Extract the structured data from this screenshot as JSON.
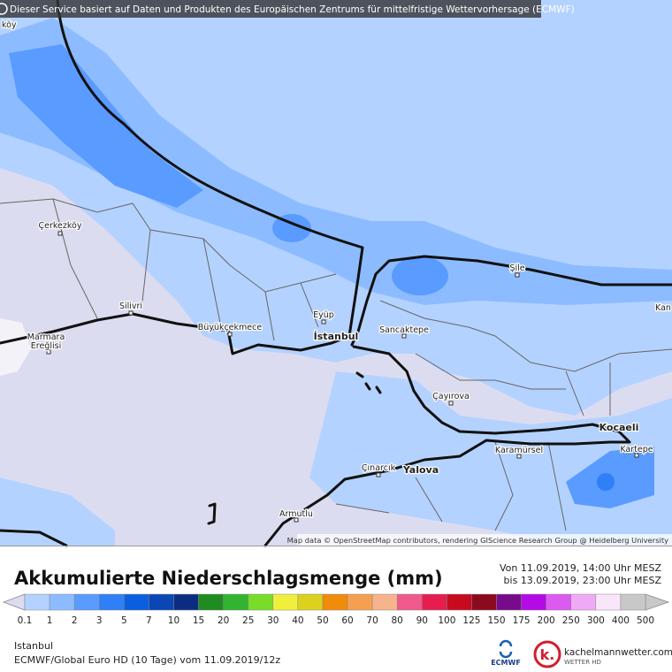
{
  "banner": "Dieser Service basiert auf Daten und Produkten des Europäischen Zentrums für mittelfristige Wettervorhersage (ECMWF)",
  "map": {
    "places": [
      "köy",
      "Çerkezköy",
      "Silivri",
      "Marmara",
      "Ereğlisi",
      "Büyükçekmece",
      "Eyüp",
      "İstanbul",
      "Sancaktepe",
      "Şile",
      "Kan",
      "Çayırova",
      "Kocaeli",
      "Kartepe",
      "Karamürsel",
      "Çınarcık",
      "Yalova",
      "Armutlu"
    ],
    "attribution": "Map data © OpenStreetMap contributors, rendering GIScience Research Group @ Heidelberg University"
  },
  "footer": {
    "title": "Akkumulierte Niederschlagsmenge (mm)",
    "period": [
      "Von 11.09.2019, 14:00 Uhr MESZ",
      "bis 13.09.2019, 23:00 Uhr MESZ"
    ],
    "legend": [
      {
        "label": "0.1",
        "color": "#dcdcf0"
      },
      {
        "label": "1",
        "color": "#b4d2ff"
      },
      {
        "label": "2",
        "color": "#8cbcff"
      },
      {
        "label": "3",
        "color": "#5a9bff"
      },
      {
        "label": "5",
        "color": "#2f7ff6"
      },
      {
        "label": "7",
        "color": "#0a5fe0"
      },
      {
        "label": "10",
        "color": "#0a46b4"
      },
      {
        "label": "15",
        "color": "#0a2d82"
      },
      {
        "label": "20",
        "color": "#1e8c1e"
      },
      {
        "label": "25",
        "color": "#32b432"
      },
      {
        "label": "30",
        "color": "#78dc28"
      },
      {
        "label": "40",
        "color": "#f0f03c"
      },
      {
        "label": "50",
        "color": "#dcd21e"
      },
      {
        "label": "60",
        "color": "#f08c0a"
      },
      {
        "label": "70",
        "color": "#f5a050"
      },
      {
        "label": "80",
        "color": "#f5b48c"
      },
      {
        "label": "90",
        "color": "#f05a8c"
      },
      {
        "label": "100",
        "color": "#e61e50"
      },
      {
        "label": "125",
        "color": "#c80a1e"
      },
      {
        "label": "150",
        "color": "#8c0a1e"
      },
      {
        "label": "175",
        "color": "#780a8c"
      },
      {
        "label": "200",
        "color": "#b40ae6"
      },
      {
        "label": "250",
        "color": "#dc5af0"
      },
      {
        "label": "300",
        "color": "#f0aaf5"
      },
      {
        "label": "400",
        "color": "#fae6fa"
      },
      {
        "label": "500",
        "color": "#c8c8c8"
      }
    ],
    "location": "Istanbul",
    "model": "ECMWF/Global Euro HD (10 Tage) vom 11.09.2019/12z",
    "logos": [
      "ECMWF",
      "kachelmannwetter.com",
      "WETTER HD"
    ]
  }
}
